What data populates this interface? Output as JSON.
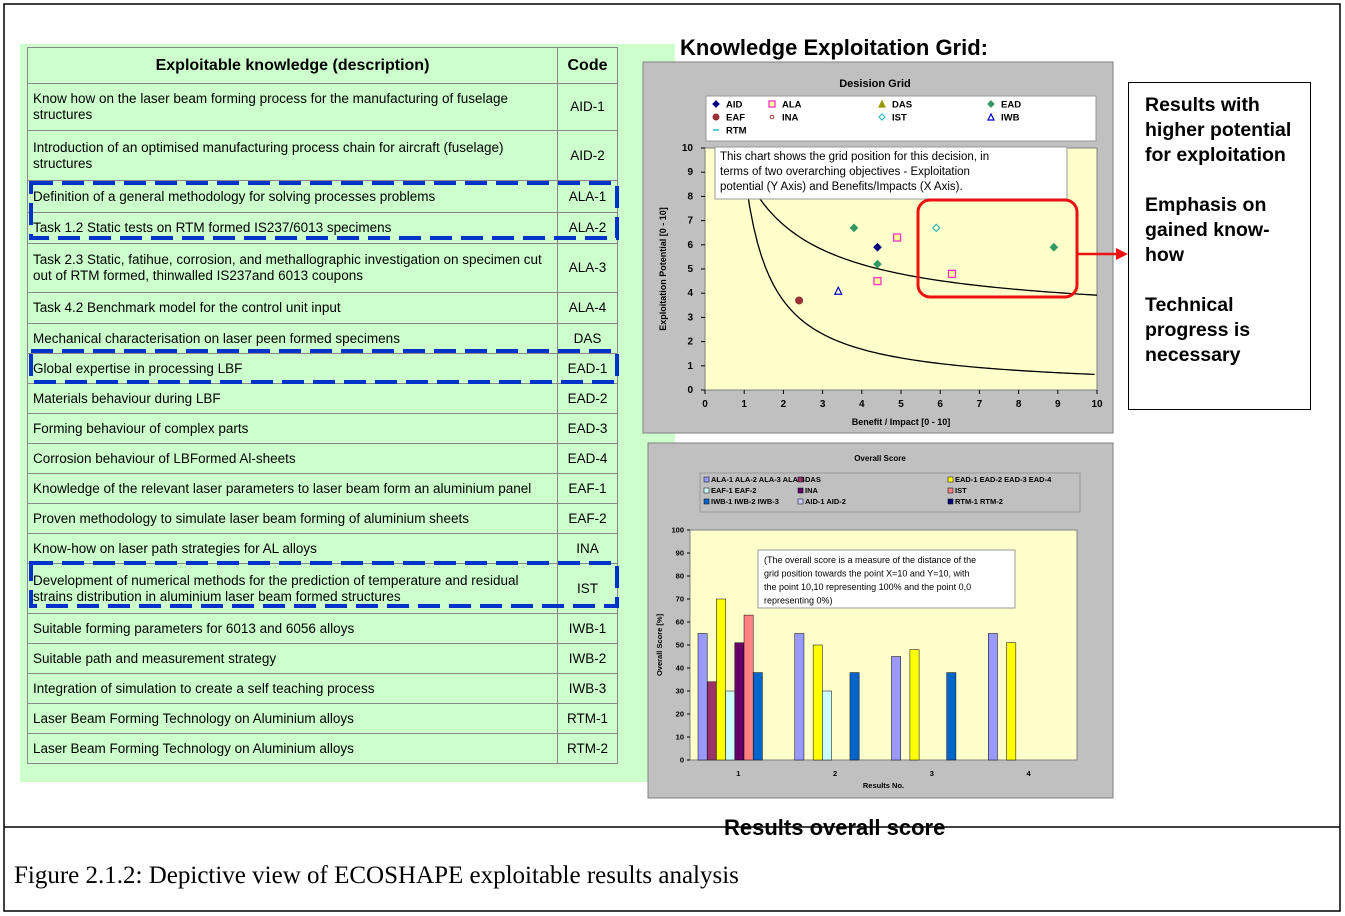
{
  "table": {
    "header": [
      "Exploitable knowledge (description)",
      "Code"
    ],
    "rows": [
      [
        "Know how on the laser beam forming process for the manufacturing of fuselage structures",
        "AID-1"
      ],
      [
        "Introduction of an optimised manufacturing process chain for aircraft (fuselage) structures",
        "AID-2"
      ],
      [
        "Definition of a general methodology for solving processes problems",
        "ALA-1"
      ],
      [
        "Task 1.2 Static tests on RTM formed IS237/6013 specimens",
        "ALA-2"
      ],
      [
        "Task 2.3 Static, fatihue, corrosion, and methallographic investigation on specimen cut out of RTM formed, thinwalled IS237and 6013 coupons",
        "ALA-3"
      ],
      [
        "Task 4.2 Benchmark model for the control unit input",
        "ALA-4"
      ],
      [
        "Mechanical characterisation on laser peen formed specimens",
        "DAS"
      ],
      [
        "Global expertise in processing LBF",
        "EAD-1"
      ],
      [
        "Materials behaviour during LBF",
        "EAD-2"
      ],
      [
        "Forming behaviour of complex parts",
        "EAD-3"
      ],
      [
        "Corrosion behaviour of LBFormed Al-sheets",
        "EAD-4"
      ],
      [
        "Knowledge of the relevant laser parameters to laser beam form an aluminium panel",
        "EAF-1"
      ],
      [
        "Proven methodology to simulate laser beam forming of aluminium sheets",
        "EAF-2"
      ],
      [
        "Know-how on laser path strategies for AL alloys",
        "INA"
      ],
      [
        "Development of numerical methods for the prediction of temperature and residual strains distribution in aluminium laser beam formed structures",
        "IST"
      ],
      [
        "Suitable forming parameters for 6013 and 6056 alloys",
        "IWB-1"
      ],
      [
        "Suitable path and measurement strategy",
        "IWB-2"
      ],
      [
        "Integration of simulation to create a self teaching process",
        "IWB-3"
      ],
      [
        "Laser Beam Forming Technology on Aluminium alloys",
        "RTM-1"
      ],
      [
        "Laser Beam Forming Technology on Aluminium alloys",
        "RTM-2"
      ]
    ]
  },
  "grid_heading": "Knowledge Exploitation Grid:",
  "side_notes": [
    "Results with higher potential for exploitation",
    "Emphasis on gained know-how",
    "Technical progress is necessary"
  ],
  "bar_heading": "Results overall score",
  "caption": "Figure 2.1.2: Depictive view of ECOSHAPE exploitable results analysis",
  "chart_data": [
    {
      "type": "scatter",
      "title": "Desision Grid",
      "xlabel": "Benefit / Impact [0 - 10]",
      "ylabel": "Exploitation Potential [0 - 10]",
      "annotation": [
        "This chart shows the grid position for this decision, in",
        "terms of two overarching objectives - Exploitation",
        "potential (Y Axis) and Benefits/Impacts (X Axis)."
      ],
      "xlim": [
        0,
        10
      ],
      "ylim": [
        0,
        10
      ],
      "xticks": [
        0,
        1,
        2,
        3,
        4,
        5,
        6,
        7,
        8,
        9,
        10
      ],
      "yticks": [
        0,
        1,
        2,
        3,
        4,
        5,
        6,
        7,
        8,
        9,
        10
      ],
      "grid": false,
      "series": [
        {
          "name": "AID",
          "color": "#000080",
          "marker": "diamond",
          "x": [
            4.4
          ],
          "y": [
            5.9
          ]
        },
        {
          "name": "ALA",
          "color": "#ff33cc",
          "marker": "square",
          "x": [
            4.4,
            4.9,
            6.3
          ],
          "y": [
            4.5,
            6.3,
            4.8
          ]
        },
        {
          "name": "DAS",
          "color": "#999900",
          "marker": "triangle",
          "x": [],
          "y": []
        },
        {
          "name": "EAD",
          "color": "#339966",
          "marker": "diamond",
          "x": [
            3.8,
            4.4,
            8.9
          ],
          "y": [
            6.7,
            5.2,
            5.9
          ]
        },
        {
          "name": "EAF",
          "color": "#993333",
          "marker": "circle",
          "x": [
            2.4
          ],
          "y": [
            3.7
          ]
        },
        {
          "name": "INA",
          "color": "#993333",
          "marker": "ring",
          "x": [],
          "y": []
        },
        {
          "name": "IST",
          "color": "#33bbbb",
          "marker": "open-diamond",
          "x": [
            5.9
          ],
          "y": [
            6.7
          ]
        },
        {
          "name": "IWB",
          "color": "#0000cc",
          "marker": "open-triangle",
          "x": [
            3.4
          ],
          "y": [
            4.1
          ]
        },
        {
          "name": "RTM",
          "color": "#33bbbb",
          "marker": "dash",
          "x": [],
          "y": []
        }
      ]
    },
    {
      "type": "bar",
      "title": "Overall Score",
      "xlabel": "Results No.",
      "ylabel": "Overall Score [%]",
      "annotation": [
        "(The overall score is a measure of the distance of the",
        "grid position towards the point X=10 and Y=10, with",
        "the point 10,10 representing 100% and the point 0,0",
        "representing 0%)"
      ],
      "categories": [
        "1",
        "2",
        "3",
        "4"
      ],
      "ylim": [
        0,
        100
      ],
      "yticks": [
        0,
        10,
        20,
        30,
        40,
        50,
        60,
        70,
        80,
        90,
        100
      ],
      "grid": false,
      "series": [
        {
          "name": "ALA-1 ALA-2 ALA-3 ALA-4",
          "color": "#9999ff",
          "values": [
            55,
            55,
            45,
            55
          ]
        },
        {
          "name": "DAS",
          "color": "#993366",
          "values": [
            34,
            null,
            null,
            null
          ]
        },
        {
          "name": "EAD-1 EAD-2 EAD-3 EAD-4",
          "color": "#ffff00",
          "values": [
            70,
            50,
            48,
            51
          ]
        },
        {
          "name": "EAF-1 EAF-2",
          "color": "#ccffff",
          "values": [
            30,
            30,
            null,
            null
          ]
        },
        {
          "name": "INA",
          "color": "#660066",
          "values": [
            51,
            null,
            null,
            null
          ]
        },
        {
          "name": "IST",
          "color": "#ff8080",
          "values": [
            63,
            null,
            null,
            null
          ]
        },
        {
          "name": "IWB-1 IWB-2 IWB-3",
          "color": "#0066cc",
          "values": [
            38,
            38,
            38,
            null
          ]
        },
        {
          "name": "AID-1 AID-2",
          "color": "#ccccff",
          "values": [
            null,
            null,
            null,
            null
          ]
        },
        {
          "name": "RTM-1 RTM-2",
          "color": "#000080",
          "values": [
            null,
            null,
            null,
            null
          ]
        }
      ]
    }
  ]
}
